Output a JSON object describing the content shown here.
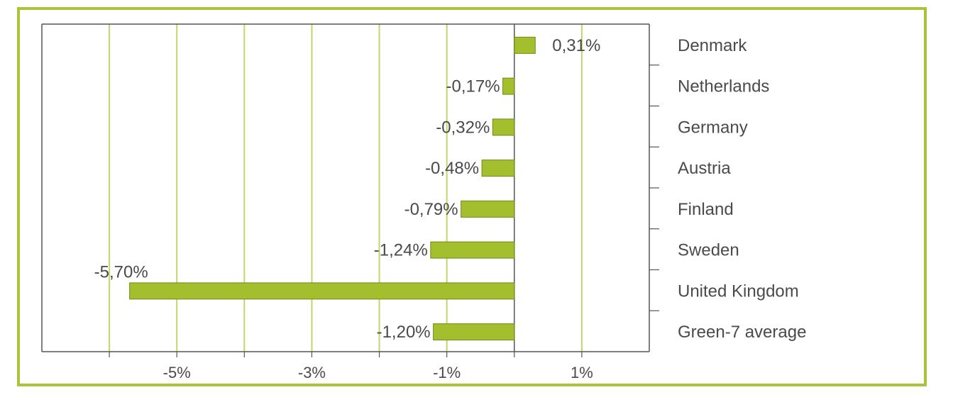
{
  "chart_data": {
    "type": "bar",
    "orientation": "horizontal",
    "categories": [
      "Denmark",
      "Netherlands",
      "Germany",
      "Austria",
      "Finland",
      "Sweden",
      "United Kingdom",
      "Green-7 average"
    ],
    "values": [
      0.31,
      -0.17,
      -0.32,
      -0.48,
      -0.79,
      -1.24,
      -5.7,
      -1.2
    ],
    "data_labels": [
      "0,31%",
      "-0,17%",
      "-0,32%",
      "-0,48%",
      "-0,79%",
      "-1,24%",
      "-5,70%",
      "-1,20%"
    ],
    "x_ticks": [
      -5,
      -3,
      -1,
      1
    ],
    "x_tick_labels": [
      "-5%",
      "-3%",
      "-1%",
      "1%"
    ],
    "xlim": [
      -7,
      2
    ],
    "grid": "vertical gridlines every 1%",
    "category_labels_position": "right",
    "title": "",
    "xlabel": "",
    "ylabel": ""
  },
  "colors": {
    "bar": "#a3bf2e",
    "grid": "#c3d66a",
    "frame_border": "#a9c43a",
    "axis": "#555555",
    "text": "#4a4a4a"
  }
}
